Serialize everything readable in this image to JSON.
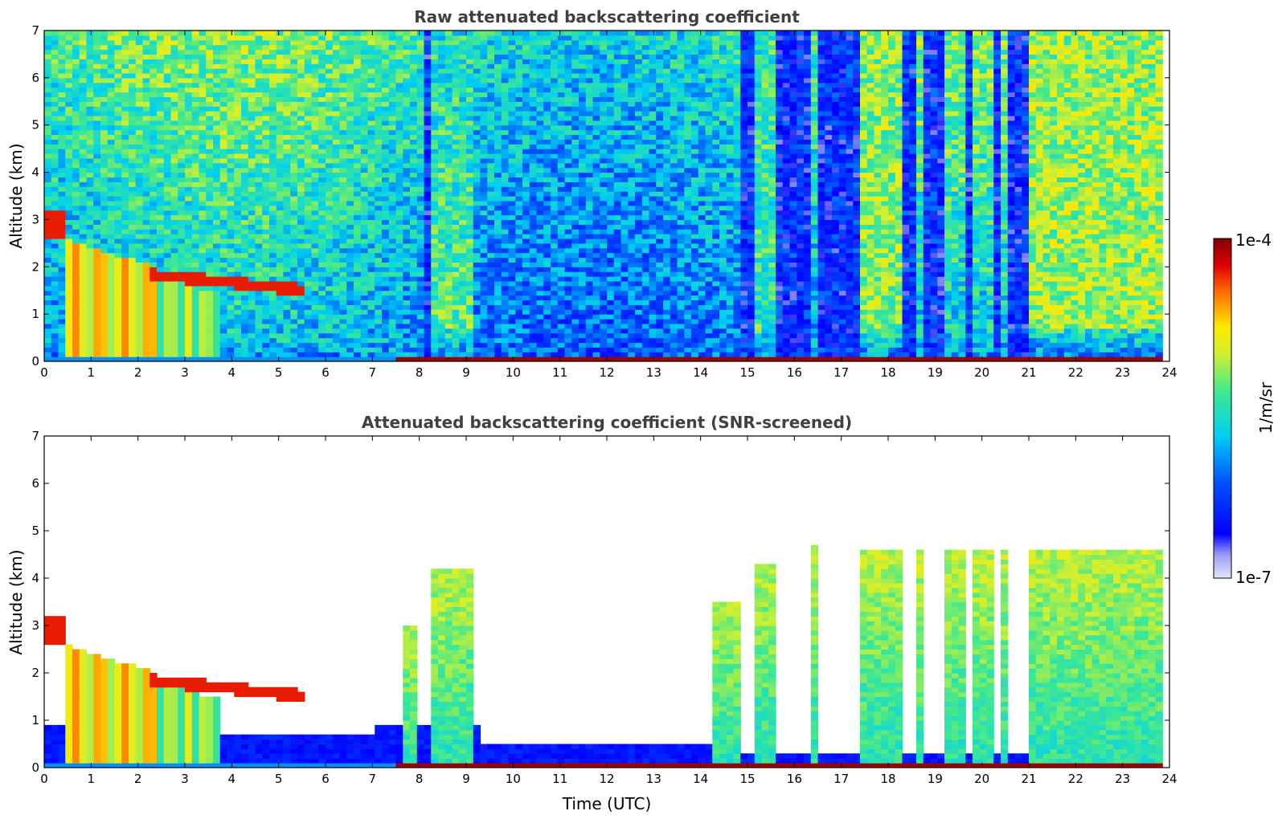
{
  "chart_data": [
    {
      "type": "heatmap",
      "title": "Raw attenuated backscattering coefficient",
      "xlabel": "",
      "ylabel": "Altitude (km)",
      "xlim": [
        0,
        24
      ],
      "ylim": [
        0,
        7
      ],
      "x_ticks": [
        "0",
        "1",
        "2",
        "3",
        "4",
        "5",
        "6",
        "7",
        "8",
        "9",
        "10",
        "11",
        "12",
        "13",
        "14",
        "15",
        "16",
        "17",
        "18",
        "19",
        "20",
        "21",
        "22",
        "23",
        "24"
      ],
      "y_ticks": [
        "0",
        "1",
        "2",
        "3",
        "4",
        "5",
        "6",
        "7"
      ],
      "screened": false
    },
    {
      "type": "heatmap",
      "title": "Attenuated backscattering coefficient (SNR-screened)",
      "xlabel": "Time (UTC)",
      "ylabel": "Altitude (km)",
      "xlim": [
        0,
        24
      ],
      "ylim": [
        0,
        7
      ],
      "x_ticks": [
        "0",
        "1",
        "2",
        "3",
        "4",
        "5",
        "6",
        "7",
        "8",
        "9",
        "10",
        "11",
        "12",
        "13",
        "14",
        "15",
        "16",
        "17",
        "18",
        "19",
        "20",
        "21",
        "22",
        "23",
        "24"
      ],
      "y_ticks": [
        "0",
        "1",
        "2",
        "3",
        "4",
        "5",
        "6",
        "7"
      ],
      "screened": true
    }
  ],
  "colorbar": {
    "label": "1/m/sr",
    "max_label": "1e-4",
    "min_label": "1e-7",
    "scale": "log",
    "range": [
      1e-07,
      0.0001
    ]
  },
  "colors": {
    "title": "#404040",
    "low": "#0000ff",
    "mid": "#00e0e0",
    "high": "#ffff00",
    "very_high": "#7f0000"
  }
}
